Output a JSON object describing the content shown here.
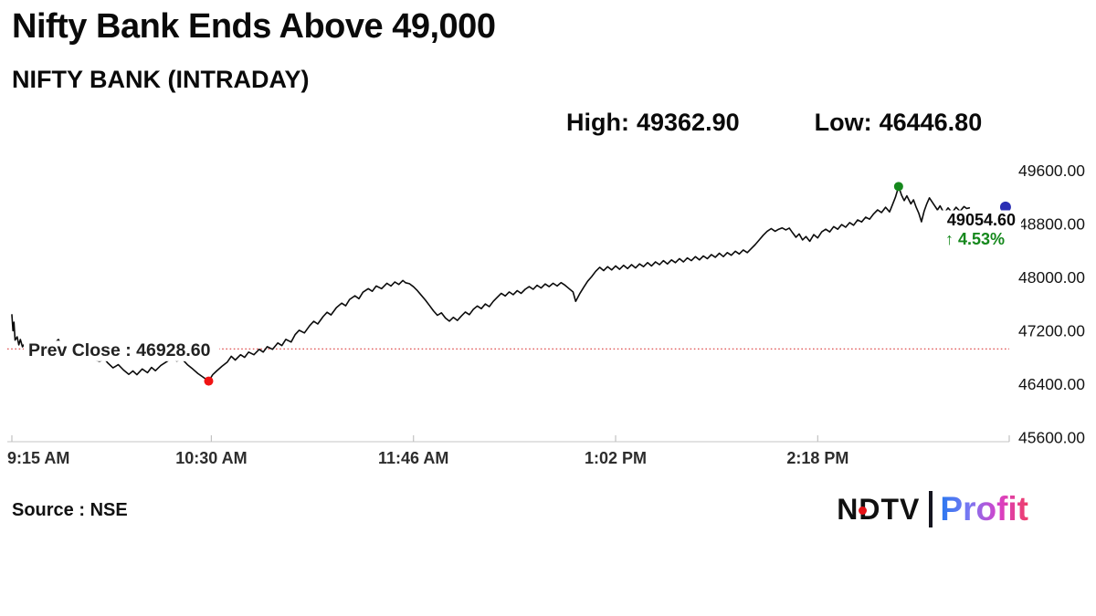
{
  "title": "Nifty Bank Ends Above 49,000",
  "subtitle": "NIFTY BANK (INTRADAY)",
  "header_stats": {
    "high_label": "High:",
    "high_value": "49362.90",
    "low_label": "Low:",
    "low_value": "46446.80"
  },
  "footer": {
    "source": "Source : NSE",
    "logo": {
      "ndtv": "NDTV",
      "profit": "Profit"
    }
  },
  "colors": {
    "line": "#0b0b0b",
    "prev_close_line": "#e05050",
    "prev_close_text": "#222222",
    "axis": "#d0d0d0",
    "tick": "#c2c2c2",
    "y_label": "#141414",
    "x_label": "#2d2d2d",
    "low_dot": "#f01414",
    "high_dot": "#15881c",
    "last_dot": "#2b2fb4",
    "last_price_text": "#0a0a0a",
    "change_green": "#15881c",
    "ndtv_dot": "#e51317",
    "profit_gradient": [
      "#2878f0",
      "#7a78f2",
      "#d840c8",
      "#ee3f68"
    ]
  },
  "chart_data": {
    "type": "line",
    "title": "NIFTY BANK (INTRADAY)",
    "x_axis": {
      "labels": [
        "9:15 AM",
        "10:30 AM",
        "11:46 AM",
        "1:02 PM",
        "2:18 PM"
      ],
      "tick_minutes": [
        0,
        75,
        151,
        227,
        303
      ],
      "session_minutes": 375
    },
    "y_axis": {
      "labels": [
        "49600.00",
        "48800.00",
        "48000.00",
        "47200.00",
        "46400.00",
        "45600.00"
      ],
      "max": 49600,
      "min": 45600,
      "step": 800
    },
    "grid": "off",
    "prev_close": {
      "label": "Prev Close : 46928.60",
      "value": 46928.6
    },
    "high_marker": {
      "value": 49362.9,
      "t": 333.4
    },
    "low_marker": {
      "value": 46446.8,
      "t": 74
    },
    "last_marker": {
      "value": 49054.6,
      "t": 373.6,
      "label": "49054.60",
      "change_label": "↑ 4.53%"
    },
    "series": [
      [
        0,
        47440
      ],
      [
        0.4,
        47200
      ],
      [
        0.8,
        47330
      ],
      [
        1.2,
        47060
      ],
      [
        2,
        47110
      ],
      [
        2.6,
        46990
      ],
      [
        3.2,
        47070
      ],
      [
        4,
        46960
      ],
      [
        5,
        47020
      ],
      [
        6,
        46950
      ],
      [
        8,
        46905
      ],
      [
        10,
        46870
      ],
      [
        12,
        46900
      ],
      [
        14,
        46935
      ],
      [
        16,
        47015
      ],
      [
        17.5,
        47070
      ],
      [
        19,
        46965
      ],
      [
        20,
        46995
      ],
      [
        21.5,
        46885
      ],
      [
        23,
        46835
      ],
      [
        25,
        46805
      ],
      [
        27,
        46775
      ],
      [
        29,
        46805
      ],
      [
        31,
        46765
      ],
      [
        33,
        46745
      ],
      [
        35,
        46772
      ],
      [
        36,
        46722
      ],
      [
        38,
        46645
      ],
      [
        40,
        46692
      ],
      [
        42,
        46612
      ],
      [
        44,
        46548
      ],
      [
        45.5,
        46598
      ],
      [
        47,
        46542
      ],
      [
        49,
        46628
      ],
      [
        51,
        46572
      ],
      [
        52.5,
        46652
      ],
      [
        54,
        46602
      ],
      [
        56,
        46682
      ],
      [
        58,
        46732
      ],
      [
        60,
        46788
      ],
      [
        62,
        46748
      ],
      [
        64,
        46778
      ],
      [
        66,
        46692
      ],
      [
        68,
        46628
      ],
      [
        70,
        46558
      ],
      [
        72,
        46502
      ],
      [
        74,
        46446.8
      ],
      [
        75.5,
        46542
      ],
      [
        77,
        46598
      ],
      [
        79,
        46668
      ],
      [
        81,
        46732
      ],
      [
        82.5,
        46818
      ],
      [
        84,
        46762
      ],
      [
        86,
        46842
      ],
      [
        87.5,
        46802
      ],
      [
        89,
        46882
      ],
      [
        91,
        46842
      ],
      [
        93,
        46922
      ],
      [
        94.5,
        46882
      ],
      [
        96,
        46962
      ],
      [
        98,
        46922
      ],
      [
        100,
        47018
      ],
      [
        101.5,
        46978
      ],
      [
        103,
        47072
      ],
      [
        105,
        47032
      ],
      [
        106.5,
        47142
      ],
      [
        108,
        47208
      ],
      [
        110,
        47168
      ],
      [
        112,
        47278
      ],
      [
        113.5,
        47342
      ],
      [
        115,
        47302
      ],
      [
        117,
        47412
      ],
      [
        118.5,
        47478
      ],
      [
        120,
        47438
      ],
      [
        122,
        47548
      ],
      [
        124,
        47615
      ],
      [
        125.5,
        47575
      ],
      [
        127,
        47670
      ],
      [
        129,
        47725
      ],
      [
        130.5,
        47682
      ],
      [
        132,
        47778
      ],
      [
        134,
        47832
      ],
      [
        135.5,
        47792
      ],
      [
        137,
        47872
      ],
      [
        139,
        47832
      ],
      [
        141,
        47912
      ],
      [
        142.5,
        47872
      ],
      [
        144,
        47932
      ],
      [
        145.5,
        47895
      ],
      [
        147,
        47955
      ],
      [
        148,
        47920
      ],
      [
        149.5,
        47905
      ],
      [
        151,
        47860
      ],
      [
        152.5,
        47800
      ],
      [
        154,
        47730
      ],
      [
        155.5,
        47660
      ],
      [
        157,
        47580
      ],
      [
        158.5,
        47500
      ],
      [
        160,
        47432
      ],
      [
        161.5,
        47470
      ],
      [
        163,
        47392
      ],
      [
        164.5,
        47345
      ],
      [
        166,
        47402
      ],
      [
        167.5,
        47356
      ],
      [
        169,
        47422
      ],
      [
        170.5,
        47482
      ],
      [
        172,
        47442
      ],
      [
        173.5,
        47522
      ],
      [
        175,
        47572
      ],
      [
        176.5,
        47532
      ],
      [
        178,
        47602
      ],
      [
        179.5,
        47562
      ],
      [
        181,
        47642
      ],
      [
        182.5,
        47702
      ],
      [
        184,
        47762
      ],
      [
        185.5,
        47722
      ],
      [
        187,
        47782
      ],
      [
        188.5,
        47742
      ],
      [
        190,
        47802
      ],
      [
        191.5,
        47762
      ],
      [
        193,
        47822
      ],
      [
        194.5,
        47862
      ],
      [
        196,
        47822
      ],
      [
        197.5,
        47882
      ],
      [
        199,
        47842
      ],
      [
        200.5,
        47902
      ],
      [
        202,
        47862
      ],
      [
        203.5,
        47912
      ],
      [
        205,
        47872
      ],
      [
        206.5,
        47922
      ],
      [
        208,
        47882
      ],
      [
        209.5,
        47832
      ],
      [
        211,
        47782
      ],
      [
        212,
        47642
      ],
      [
        212.8,
        47702
      ],
      [
        213.6,
        47762
      ],
      [
        215,
        47852
      ],
      [
        216.5,
        47942
      ],
      [
        218,
        48012
      ],
      [
        219.5,
        48092
      ],
      [
        221,
        48152
      ],
      [
        222.5,
        48102
      ],
      [
        224,
        48162
      ],
      [
        225.5,
        48112
      ],
      [
        227,
        48172
      ],
      [
        228.5,
        48122
      ],
      [
        230,
        48182
      ],
      [
        231.5,
        48132
      ],
      [
        233,
        48192
      ],
      [
        234.5,
        48142
      ],
      [
        236,
        48202
      ],
      [
        237.5,
        48162
      ],
      [
        239,
        48222
      ],
      [
        240.5,
        48172
      ],
      [
        242,
        48232
      ],
      [
        243.5,
        48192
      ],
      [
        245,
        48252
      ],
      [
        246.5,
        48202
      ],
      [
        248,
        48262
      ],
      [
        249.5,
        48222
      ],
      [
        251,
        48282
      ],
      [
        252.5,
        48232
      ],
      [
        254,
        48292
      ],
      [
        255.5,
        48252
      ],
      [
        257,
        48312
      ],
      [
        258.5,
        48262
      ],
      [
        260,
        48322
      ],
      [
        261.5,
        48282
      ],
      [
        263,
        48342
      ],
      [
        264.5,
        48302
      ],
      [
        266,
        48362
      ],
      [
        267.5,
        48312
      ],
      [
        269,
        48372
      ],
      [
        270.5,
        48332
      ],
      [
        272,
        48392
      ],
      [
        273.5,
        48352
      ],
      [
        275,
        48412
      ],
      [
        276.5,
        48372
      ],
      [
        278,
        48432
      ],
      [
        279.5,
        48492
      ],
      [
        281,
        48562
      ],
      [
        282.5,
        48632
      ],
      [
        284,
        48692
      ],
      [
        285.5,
        48732
      ],
      [
        287,
        48692
      ],
      [
        288.3,
        48722
      ],
      [
        289.6,
        48742
      ],
      [
        291,
        48712
      ],
      [
        292.3,
        48740
      ],
      [
        293.5,
        48672
      ],
      [
        294.8,
        48602
      ],
      [
        296,
        48652
      ],
      [
        297.3,
        48562
      ],
      [
        298.6,
        48612
      ],
      [
        300,
        48542
      ],
      [
        301.5,
        48642
      ],
      [
        303,
        48592
      ],
      [
        304.5,
        48682
      ],
      [
        306,
        48722
      ],
      [
        307.5,
        48682
      ],
      [
        309,
        48762
      ],
      [
        310.5,
        48722
      ],
      [
        312,
        48792
      ],
      [
        313.5,
        48752
      ],
      [
        315,
        48822
      ],
      [
        316.5,
        48782
      ],
      [
        318,
        48862
      ],
      [
        319.5,
        48832
      ],
      [
        321,
        48902
      ],
      [
        322.5,
        48872
      ],
      [
        324,
        48952
      ],
      [
        325.5,
        49012
      ],
      [
        327,
        48972
      ],
      [
        328.5,
        49052
      ],
      [
        330,
        48982
      ],
      [
        331.2,
        49102
      ],
      [
        332.2,
        49202
      ],
      [
        333.4,
        49362.9
      ],
      [
        334.5,
        49232
      ],
      [
        335.5,
        49152
      ],
      [
        336.5,
        49222
      ],
      [
        338,
        49102
      ],
      [
        339,
        49162
      ],
      [
        340,
        49052
      ],
      [
        341,
        48962
      ],
      [
        342,
        48834
      ],
      [
        343,
        48992
      ],
      [
        344,
        49102
      ],
      [
        345,
        49192
      ],
      [
        346.5,
        49102
      ],
      [
        348,
        49012
      ],
      [
        349,
        49072
      ],
      [
        350.5,
        48962
      ],
      [
        352,
        49042
      ],
      [
        353.5,
        48972
      ],
      [
        355,
        49052
      ],
      [
        356.5,
        48992
      ],
      [
        358,
        49062
      ],
      [
        359,
        49032
      ],
      [
        360,
        49042
      ]
    ]
  }
}
